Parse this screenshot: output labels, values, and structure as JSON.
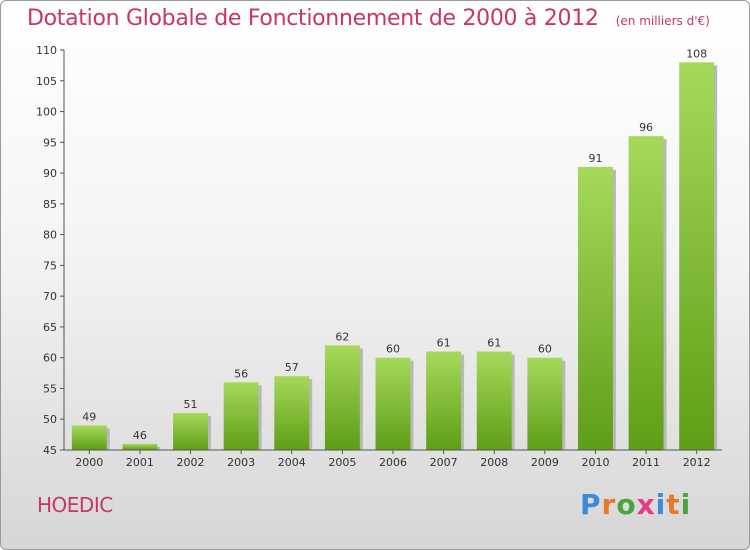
{
  "header": {
    "title": "Dotation Globale de Fonctionnement de 2000 à 2012",
    "unit": "(en milliers d'€)"
  },
  "footer": {
    "commune": "HOEDIC",
    "logo_letters": [
      "P",
      "r",
      "o",
      "x",
      "i",
      "t",
      "i"
    ]
  },
  "colors": {
    "title": "#c9346a",
    "bar_light": "#a6d95a",
    "bar_dark": "#5e9e16",
    "logo": [
      "#3d8ad8",
      "#e8792b",
      "#4aa33c",
      "#e63a87",
      "#3d8ad8",
      "#e8792b",
      "#4aa33c"
    ]
  },
  "chart_data": {
    "type": "bar",
    "title": "Dotation Globale de Fonctionnement de 2000 à 2012",
    "subtitle": "(en milliers d'€)",
    "categories": [
      "2000",
      "2001",
      "2002",
      "2003",
      "2004",
      "2005",
      "2006",
      "2007",
      "2008",
      "2009",
      "2010",
      "2011",
      "2012"
    ],
    "values": [
      49,
      46,
      51,
      56,
      57,
      62,
      60,
      61,
      61,
      60,
      91,
      96,
      108
    ],
    "ylim": [
      45,
      110
    ],
    "yticks": [
      45,
      50,
      55,
      60,
      65,
      70,
      75,
      80,
      85,
      90,
      95,
      100,
      105,
      110
    ],
    "grid": false,
    "legend": "none"
  }
}
